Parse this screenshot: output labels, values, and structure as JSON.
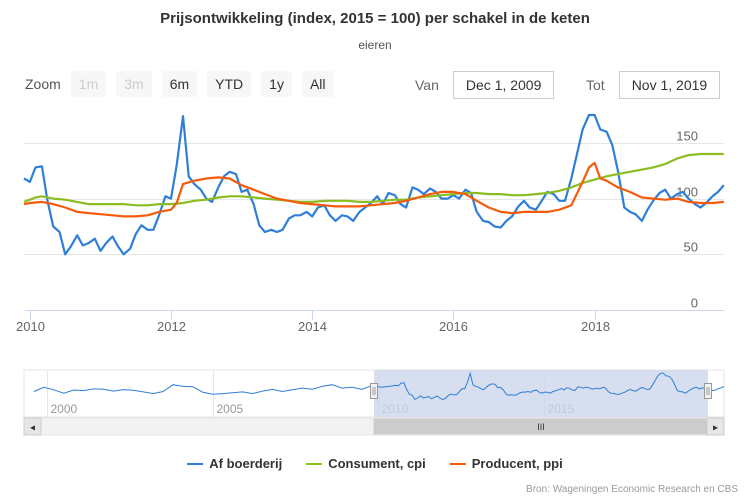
{
  "title": "Prijsontwikkeling (index, 2015 = 100) per schakel in de keten",
  "subtitle": "eieren",
  "zoom": {
    "label": "Zoom",
    "buttons": [
      {
        "label": "1m",
        "enabled": false
      },
      {
        "label": "3m",
        "enabled": false
      },
      {
        "label": "6m",
        "enabled": true
      },
      {
        "label": "YTD",
        "enabled": true
      },
      {
        "label": "1y",
        "enabled": true
      },
      {
        "label": "All",
        "enabled": true
      }
    ]
  },
  "range": {
    "from_label": "Van",
    "from_value": "Dec 1, 2009",
    "to_label": "Tot",
    "to_value": "Nov 1, 2019"
  },
  "credits": "Bron: Wageningen Economic Research en CBS",
  "navigator": {
    "x_labels": [
      "2000",
      "2005",
      "2010",
      "2015"
    ],
    "handle_glyph": "III",
    "left_arrow": "◂",
    "right_arrow": "▸"
  },
  "chart_data": {
    "type": "line",
    "x_start": "2009-12",
    "x_end": "2019-11",
    "xlim": [
      2009.917,
      2019.833
    ],
    "ylim": [
      0,
      175
    ],
    "x_ticks": [
      2010,
      2012,
      2014,
      2016,
      2018
    ],
    "x_tick_labels": [
      "2010",
      "2012",
      "2014",
      "2016",
      "2018"
    ],
    "y_ticks": [
      0,
      50,
      100,
      150
    ],
    "y_tick_labels": [
      "0",
      "50",
      "100",
      "150"
    ],
    "grid": true,
    "legend_position": "bottom",
    "series": [
      {
        "name": "Af boerderij",
        "color": "#2f7ed8",
        "points": [
          [
            2009.917,
            118
          ],
          [
            2010.0,
            115
          ],
          [
            2010.08,
            128
          ],
          [
            2010.17,
            129
          ],
          [
            2010.25,
            98
          ],
          [
            2010.33,
            75
          ],
          [
            2010.42,
            70
          ],
          [
            2010.5,
            50
          ],
          [
            2010.58,
            57
          ],
          [
            2010.67,
            67
          ],
          [
            2010.75,
            58
          ],
          [
            2010.83,
            60
          ],
          [
            2010.92,
            64
          ],
          [
            2011.0,
            53
          ],
          [
            2011.08,
            60
          ],
          [
            2011.17,
            66
          ],
          [
            2011.25,
            57
          ],
          [
            2011.33,
            50
          ],
          [
            2011.42,
            55
          ],
          [
            2011.5,
            68
          ],
          [
            2011.58,
            76
          ],
          [
            2011.67,
            72
          ],
          [
            2011.75,
            72
          ],
          [
            2011.83,
            85
          ],
          [
            2011.92,
            102
          ],
          [
            2012.0,
            100
          ],
          [
            2012.08,
            130
          ],
          [
            2012.17,
            174
          ],
          [
            2012.25,
            120
          ],
          [
            2012.33,
            113
          ],
          [
            2012.42,
            108
          ],
          [
            2012.5,
            100
          ],
          [
            2012.58,
            97
          ],
          [
            2012.67,
            110
          ],
          [
            2012.75,
            120
          ],
          [
            2012.83,
            124
          ],
          [
            2012.92,
            122
          ],
          [
            2013.0,
            106
          ],
          [
            2013.08,
            108
          ],
          [
            2013.17,
            95
          ],
          [
            2013.25,
            76
          ],
          [
            2013.33,
            70
          ],
          [
            2013.42,
            72
          ],
          [
            2013.5,
            70
          ],
          [
            2013.58,
            72
          ],
          [
            2013.67,
            82
          ],
          [
            2013.75,
            85
          ],
          [
            2013.83,
            85
          ],
          [
            2013.92,
            88
          ],
          [
            2014.0,
            84
          ],
          [
            2014.08,
            92
          ],
          [
            2014.17,
            94
          ],
          [
            2014.25,
            85
          ],
          [
            2014.33,
            80
          ],
          [
            2014.42,
            85
          ],
          [
            2014.5,
            84
          ],
          [
            2014.58,
            80
          ],
          [
            2014.67,
            88
          ],
          [
            2014.75,
            92
          ],
          [
            2014.83,
            96
          ],
          [
            2014.92,
            102
          ],
          [
            2015.0,
            95
          ],
          [
            2015.08,
            105
          ],
          [
            2015.17,
            103
          ],
          [
            2015.25,
            95
          ],
          [
            2015.33,
            92
          ],
          [
            2015.42,
            110
          ],
          [
            2015.5,
            108
          ],
          [
            2015.58,
            104
          ],
          [
            2015.67,
            109
          ],
          [
            2015.75,
            106
          ],
          [
            2015.83,
            100
          ],
          [
            2015.92,
            100
          ],
          [
            2016.0,
            103
          ],
          [
            2016.08,
            100
          ],
          [
            2016.17,
            108
          ],
          [
            2016.25,
            105
          ],
          [
            2016.33,
            88
          ],
          [
            2016.42,
            80
          ],
          [
            2016.5,
            79
          ],
          [
            2016.58,
            75
          ],
          [
            2016.67,
            74
          ],
          [
            2016.75,
            80
          ],
          [
            2016.83,
            84
          ],
          [
            2016.92,
            93
          ],
          [
            2017.0,
            98
          ],
          [
            2017.08,
            92
          ],
          [
            2017.17,
            90
          ],
          [
            2017.25,
            98
          ],
          [
            2017.33,
            106
          ],
          [
            2017.42,
            104
          ],
          [
            2017.5,
            98
          ],
          [
            2017.58,
            98
          ],
          [
            2017.67,
            118
          ],
          [
            2017.75,
            140
          ],
          [
            2017.83,
            162
          ],
          [
            2017.92,
            175
          ],
          [
            2018.0,
            175
          ],
          [
            2018.08,
            162
          ],
          [
            2018.17,
            160
          ],
          [
            2018.25,
            148
          ],
          [
            2018.33,
            125
          ],
          [
            2018.42,
            92
          ],
          [
            2018.5,
            88
          ],
          [
            2018.58,
            86
          ],
          [
            2018.67,
            80
          ],
          [
            2018.75,
            90
          ],
          [
            2018.83,
            98
          ],
          [
            2018.92,
            105
          ],
          [
            2019.0,
            108
          ],
          [
            2019.08,
            100
          ],
          [
            2019.17,
            104
          ],
          [
            2019.25,
            106
          ],
          [
            2019.33,
            100
          ],
          [
            2019.42,
            95
          ],
          [
            2019.5,
            92
          ],
          [
            2019.58,
            96
          ],
          [
            2019.67,
            102
          ],
          [
            2019.75,
            106
          ],
          [
            2019.83,
            112
          ]
        ]
      },
      {
        "name": "Consument, cpi",
        "color": "#8bbc21",
        "points": [
          [
            2009.917,
            97
          ],
          [
            2010.0,
            99
          ],
          [
            2010.08,
            101
          ],
          [
            2010.17,
            102
          ],
          [
            2010.33,
            100
          ],
          [
            2010.5,
            99
          ],
          [
            2010.67,
            97
          ],
          [
            2010.83,
            95
          ],
          [
            2011.0,
            95
          ],
          [
            2011.17,
            95
          ],
          [
            2011.33,
            95
          ],
          [
            2011.5,
            94
          ],
          [
            2011.67,
            94
          ],
          [
            2011.83,
            95
          ],
          [
            2012.0,
            95
          ],
          [
            2012.17,
            96
          ],
          [
            2012.33,
            98
          ],
          [
            2012.5,
            99
          ],
          [
            2012.67,
            101
          ],
          [
            2012.83,
            102
          ],
          [
            2013.0,
            102
          ],
          [
            2013.17,
            101
          ],
          [
            2013.33,
            100
          ],
          [
            2013.5,
            99
          ],
          [
            2013.67,
            98
          ],
          [
            2013.83,
            97
          ],
          [
            2014.0,
            97
          ],
          [
            2014.17,
            98
          ],
          [
            2014.33,
            98
          ],
          [
            2014.5,
            98
          ],
          [
            2014.67,
            97
          ],
          [
            2014.83,
            97
          ],
          [
            2015.0,
            98
          ],
          [
            2015.17,
            99
          ],
          [
            2015.33,
            99
          ],
          [
            2015.5,
            101
          ],
          [
            2015.67,
            102
          ],
          [
            2015.83,
            103
          ],
          [
            2016.0,
            104
          ],
          [
            2016.17,
            105
          ],
          [
            2016.33,
            105
          ],
          [
            2016.5,
            104
          ],
          [
            2016.67,
            104
          ],
          [
            2016.83,
            103
          ],
          [
            2017.0,
            103
          ],
          [
            2017.17,
            104
          ],
          [
            2017.33,
            105
          ],
          [
            2017.5,
            107
          ],
          [
            2017.67,
            110
          ],
          [
            2017.83,
            114
          ],
          [
            2018.0,
            117
          ],
          [
            2018.17,
            120
          ],
          [
            2018.33,
            122
          ],
          [
            2018.5,
            124
          ],
          [
            2018.67,
            126
          ],
          [
            2018.83,
            128
          ],
          [
            2019.0,
            131
          ],
          [
            2019.17,
            136
          ],
          [
            2019.33,
            139
          ],
          [
            2019.5,
            140
          ],
          [
            2019.67,
            140
          ],
          [
            2019.83,
            140
          ]
        ]
      },
      {
        "name": "Producent, ppi",
        "color": "#f45b0b",
        "points": [
          [
            2009.917,
            95
          ],
          [
            2010.0,
            96
          ],
          [
            2010.17,
            97
          ],
          [
            2010.33,
            95
          ],
          [
            2010.5,
            92
          ],
          [
            2010.67,
            88
          ],
          [
            2010.83,
            87
          ],
          [
            2011.0,
            86
          ],
          [
            2011.17,
            85
          ],
          [
            2011.33,
            84
          ],
          [
            2011.5,
            84
          ],
          [
            2011.67,
            85
          ],
          [
            2011.83,
            88
          ],
          [
            2012.0,
            90
          ],
          [
            2012.08,
            96
          ],
          [
            2012.17,
            113
          ],
          [
            2012.33,
            116
          ],
          [
            2012.5,
            118
          ],
          [
            2012.67,
            119
          ],
          [
            2012.83,
            118
          ],
          [
            2013.0,
            112
          ],
          [
            2013.17,
            108
          ],
          [
            2013.33,
            104
          ],
          [
            2013.5,
            100
          ],
          [
            2013.67,
            98
          ],
          [
            2013.83,
            96
          ],
          [
            2014.0,
            95
          ],
          [
            2014.17,
            94
          ],
          [
            2014.33,
            93
          ],
          [
            2014.5,
            93
          ],
          [
            2014.67,
            93
          ],
          [
            2014.83,
            94
          ],
          [
            2015.0,
            95
          ],
          [
            2015.17,
            96
          ],
          [
            2015.33,
            98
          ],
          [
            2015.5,
            101
          ],
          [
            2015.67,
            104
          ],
          [
            2015.83,
            106
          ],
          [
            2016.0,
            106
          ],
          [
            2016.17,
            104
          ],
          [
            2016.33,
            98
          ],
          [
            2016.5,
            92
          ],
          [
            2016.67,
            88
          ],
          [
            2016.83,
            87
          ],
          [
            2017.0,
            88
          ],
          [
            2017.17,
            88
          ],
          [
            2017.33,
            88
          ],
          [
            2017.5,
            90
          ],
          [
            2017.67,
            94
          ],
          [
            2017.83,
            115
          ],
          [
            2017.92,
            128
          ],
          [
            2018.0,
            132
          ],
          [
            2018.08,
            118
          ],
          [
            2018.17,
            116
          ],
          [
            2018.33,
            110
          ],
          [
            2018.5,
            106
          ],
          [
            2018.67,
            101
          ],
          [
            2018.83,
            100
          ],
          [
            2019.0,
            99
          ],
          [
            2019.17,
            100
          ],
          [
            2019.33,
            97
          ],
          [
            2019.5,
            96
          ],
          [
            2019.67,
            96
          ],
          [
            2019.83,
            97
          ]
        ]
      }
    ]
  }
}
